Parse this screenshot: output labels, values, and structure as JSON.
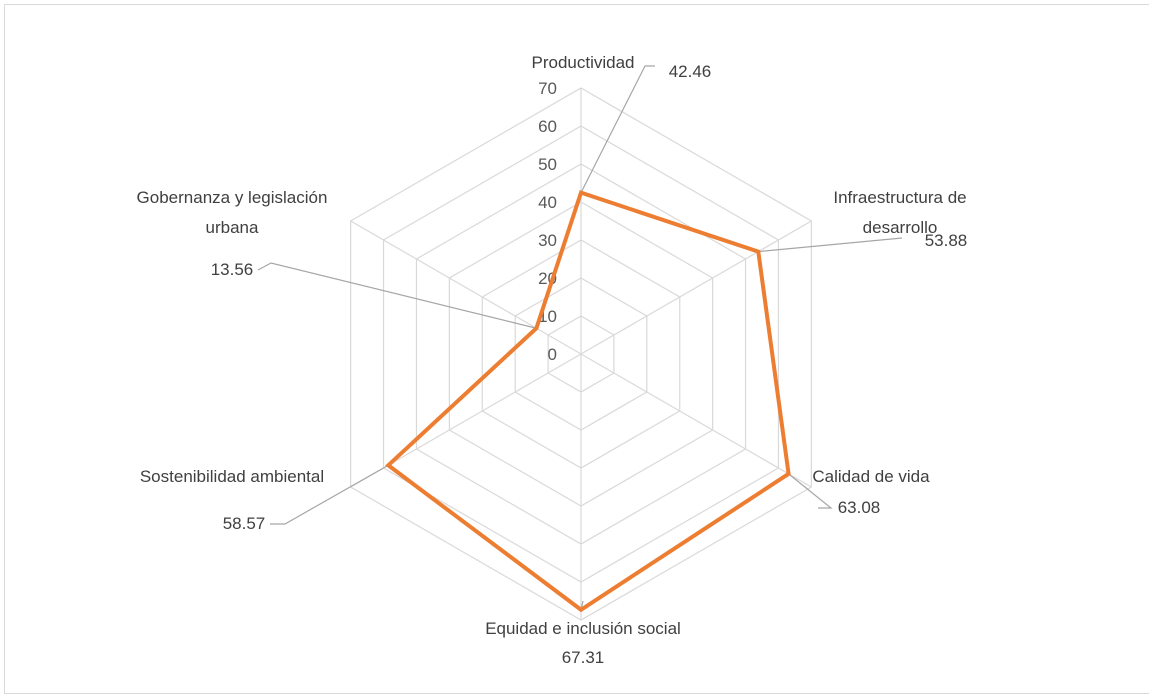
{
  "chart_data": {
    "type": "radar",
    "categories": [
      "Productividad",
      "Infraestructura de desarrollo",
      "Calidad de vida",
      "Equidad e inclusión social",
      "Sostenibilidad ambiental",
      "Gobernanza y legislación urbana"
    ],
    "category_lines": [
      [
        "Productividad"
      ],
      [
        "Infraestructura de",
        "desarrollo"
      ],
      [
        "Calidad de vida"
      ],
      [
        "Equidad e inclusión social"
      ],
      [
        "Sostenibilidad ambiental"
      ],
      [
        "Gobernanza y legislación",
        "urbana"
      ]
    ],
    "series": [
      {
        "values": [
          42.46,
          53.88,
          63.08,
          67.31,
          58.57,
          13.56
        ],
        "color": "#ED7D31"
      }
    ],
    "value_labels": [
      "42.46",
      "53.88",
      "63.08",
      "67.31",
      "58.57",
      "13.56"
    ],
    "rlim": [
      0,
      70
    ],
    "ticks": [
      0,
      10,
      20,
      30,
      40,
      50,
      60,
      70
    ],
    "grid": true,
    "legend": "none",
    "gridline_color": "#D9D9D9"
  }
}
